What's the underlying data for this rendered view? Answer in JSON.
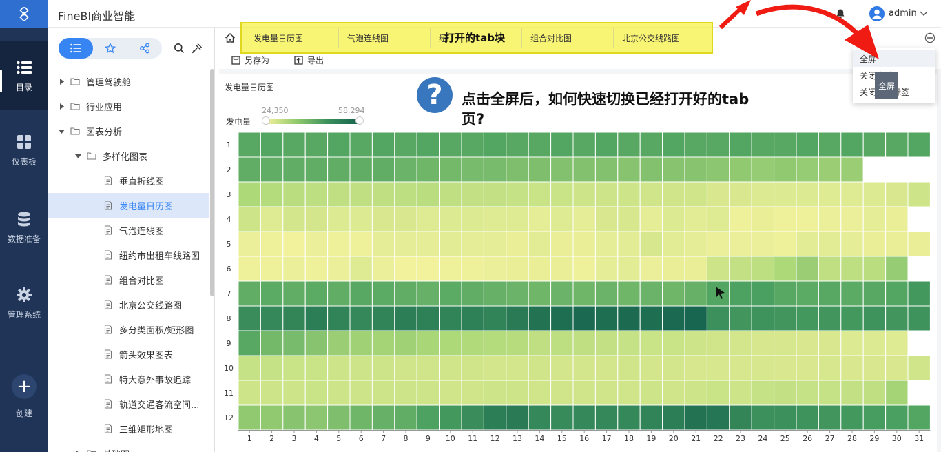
{
  "header": {
    "app_title": "FineBI商业智能",
    "username": "admin"
  },
  "leftnav": {
    "items": [
      {
        "label": "目录",
        "icon": "list-icon"
      },
      {
        "label": "仪表板",
        "icon": "dashboard-icon"
      },
      {
        "label": "数据准备",
        "icon": "database-icon"
      },
      {
        "label": "管理系统",
        "icon": "gear-icon"
      }
    ],
    "create_label": "创建"
  },
  "sidebar": {
    "tree": [
      {
        "label": "管理驾驶舱",
        "type": "folder",
        "level": 0,
        "expanded": false
      },
      {
        "label": "行业应用",
        "type": "folder",
        "level": 0,
        "expanded": false
      },
      {
        "label": "图表分析",
        "type": "folder",
        "level": 0,
        "expanded": true
      },
      {
        "label": "多样化图表",
        "type": "folder",
        "level": 1,
        "expanded": true
      },
      {
        "label": "垂直折线图",
        "type": "file",
        "level": 2
      },
      {
        "label": "发电量日历图",
        "type": "file",
        "level": 2,
        "selected": true
      },
      {
        "label": "气泡连线图",
        "type": "file",
        "level": 2
      },
      {
        "label": "纽约市出租车线路图",
        "type": "file",
        "level": 2
      },
      {
        "label": "组合对比图",
        "type": "file",
        "level": 2
      },
      {
        "label": "北京公交线路图",
        "type": "file",
        "level": 2
      },
      {
        "label": "多分类面积/矩形图",
        "type": "file",
        "level": 2
      },
      {
        "label": "箭头效果图表",
        "type": "file",
        "level": 2
      },
      {
        "label": "特大意外事故追踪",
        "type": "file",
        "level": 2
      },
      {
        "label": "轨道交通客流空间...",
        "type": "file",
        "level": 2
      },
      {
        "label": "三维矩形地图",
        "type": "file",
        "level": 2
      },
      {
        "label": "基础图表",
        "type": "folder",
        "level": 1,
        "expanded": false
      }
    ]
  },
  "tabs": [
    {
      "label": "发电量日历图",
      "active": true
    },
    {
      "label": "气泡连线图"
    },
    {
      "label": "纽"
    },
    {
      "label": "组合对比图"
    },
    {
      "label": "北京公交线路图"
    }
  ],
  "annotation": {
    "tabs_label": "打开的tab块",
    "question": "点击全屏后，如何快速切换已经打开好的tab页?"
  },
  "toolbar": {
    "save_as": "另存为",
    "export": "导出"
  },
  "menu": {
    "items": [
      "全屏",
      "关闭当前",
      "关闭其他标签"
    ],
    "tooltip": "全屏"
  },
  "chart_data": {
    "type": "heatmap",
    "title": "发电量日历图",
    "legend_label": "发电量",
    "legend_range": [
      24350,
      58294
    ],
    "x_categories": [
      "1",
      "2",
      "3",
      "4",
      "5",
      "6",
      "7",
      "8",
      "9",
      "10",
      "11",
      "12",
      "13",
      "14",
      "15",
      "16",
      "17",
      "18",
      "19",
      "20",
      "21",
      "22",
      "23",
      "24",
      "25",
      "26",
      "27",
      "28",
      "29",
      "30",
      "31"
    ],
    "y_categories": [
      "1",
      "2",
      "3",
      "4",
      "5",
      "6",
      "7",
      "8",
      "9",
      "10",
      "11",
      "12"
    ],
    "values": [
      [
        45000,
        45500,
        45000,
        45000,
        45500,
        45000,
        45500,
        45000,
        45500,
        45000,
        45000,
        45500,
        45000,
        45000,
        45500,
        45000,
        45500,
        45000,
        45000,
        45500,
        45000,
        45000,
        45500,
        45000,
        45000,
        45500,
        45000,
        45500,
        45000,
        45000,
        45500
      ],
      [
        44000,
        44000,
        44000,
        44000,
        44000,
        44000,
        44000,
        43000,
        42500,
        42000,
        41500,
        41500,
        41000,
        41000,
        40500,
        40500,
        40500,
        40000,
        40500,
        40000,
        40000,
        39500,
        39000,
        38500,
        39000,
        38500,
        38000,
        38000,
        null,
        null,
        null
      ],
      [
        36000,
        35000,
        34000,
        33500,
        33000,
        33000,
        33000,
        33500,
        34000,
        33000,
        32500,
        32500,
        32000,
        31500,
        31500,
        31000,
        31000,
        31000,
        30500,
        30500,
        30500,
        29000,
        29000,
        28500,
        28500,
        28500,
        28000,
        28000,
        28500,
        29000,
        31000
      ],
      [
        31000,
        28000,
        30000,
        30000,
        28500,
        28500,
        29000,
        29000,
        28000,
        28500,
        28500,
        28000,
        28000,
        27000,
        28000,
        27000,
        29000,
        29500,
        27000,
        28500,
        27500,
        28000,
        25500,
        26500,
        25500,
        25500,
        26000,
        26000,
        27000,
        26500,
        null
      ],
      [
        26000,
        25500,
        25000,
        26000,
        25500,
        25500,
        27000,
        27000,
        27000,
        27500,
        27000,
        27000,
        26500,
        27500,
        26500,
        26500,
        27000,
        27500,
        29500,
        27500,
        27000,
        26000,
        26000,
        26000,
        25500,
        27500,
        27500,
        27000,
        26500,
        26500,
        26500
      ],
      [
        25500,
        25500,
        26000,
        25500,
        26000,
        28000,
        26000,
        25000,
        25000,
        25500,
        25500,
        26000,
        26500,
        26500,
        26500,
        25500,
        27000,
        27500,
        26000,
        26500,
        26500,
        31000,
        32500,
        33500,
        36000,
        38000,
        33000,
        33500,
        34000,
        38500,
        null
      ],
      [
        44000,
        44500,
        44000,
        44500,
        44000,
        45000,
        44500,
        44000,
        43500,
        44500,
        44000,
        43500,
        43000,
        42500,
        43000,
        42500,
        43000,
        42500,
        43000,
        42500,
        43500,
        45500,
        46000,
        46500,
        45000,
        44500,
        45000,
        44500,
        45000,
        45500,
        48000
      ],
      [
        50000,
        51000,
        51500,
        53000,
        52000,
        51000,
        52000,
        53000,
        52500,
        52000,
        52500,
        52000,
        53500,
        55000,
        56000,
        57000,
        56000,
        56500,
        56000,
        57000,
        57500,
        49500,
        48500,
        49000,
        48500,
        48000,
        48500,
        48000,
        49000,
        48500,
        49000
      ],
      [
        45000,
        42000,
        41500,
        40000,
        38000,
        37500,
        37000,
        37500,
        36500,
        36000,
        35500,
        35000,
        34500,
        33000,
        33500,
        33000,
        32500,
        32000,
        31500,
        31500,
        31000,
        30500,
        30000,
        29500,
        29500,
        29000,
        29000,
        28500,
        28500,
        28000,
        null
      ],
      [
        32000,
        32000,
        31500,
        31500,
        31000,
        31000,
        31000,
        30500,
        30500,
        30500,
        30500,
        30000,
        30000,
        30500,
        30000,
        30000,
        30000,
        30500,
        30000,
        30000,
        29500,
        29500,
        29500,
        29500,
        29000,
        29000,
        29500,
        29000,
        29000,
        29000,
        30500
      ],
      [
        31000,
        31000,
        31000,
        31500,
        31000,
        31000,
        31000,
        31000,
        31000,
        30500,
        30500,
        31000,
        31000,
        30500,
        30500,
        30500,
        30500,
        30500,
        31000,
        30500,
        31000,
        31500,
        31000,
        32000,
        32500,
        32000,
        32000,
        32500,
        33000,
        37000,
        null
      ],
      [
        39000,
        39000,
        40000,
        39500,
        41000,
        42500,
        43500,
        44000,
        46000,
        48000,
        50000,
        53000,
        53500,
        51000,
        50500,
        51000,
        51000,
        51000,
        52000,
        53000,
        55000,
        54500,
        51500,
        49500,
        49500,
        49000,
        48500,
        48000,
        47000,
        46500,
        45500
      ]
    ]
  }
}
